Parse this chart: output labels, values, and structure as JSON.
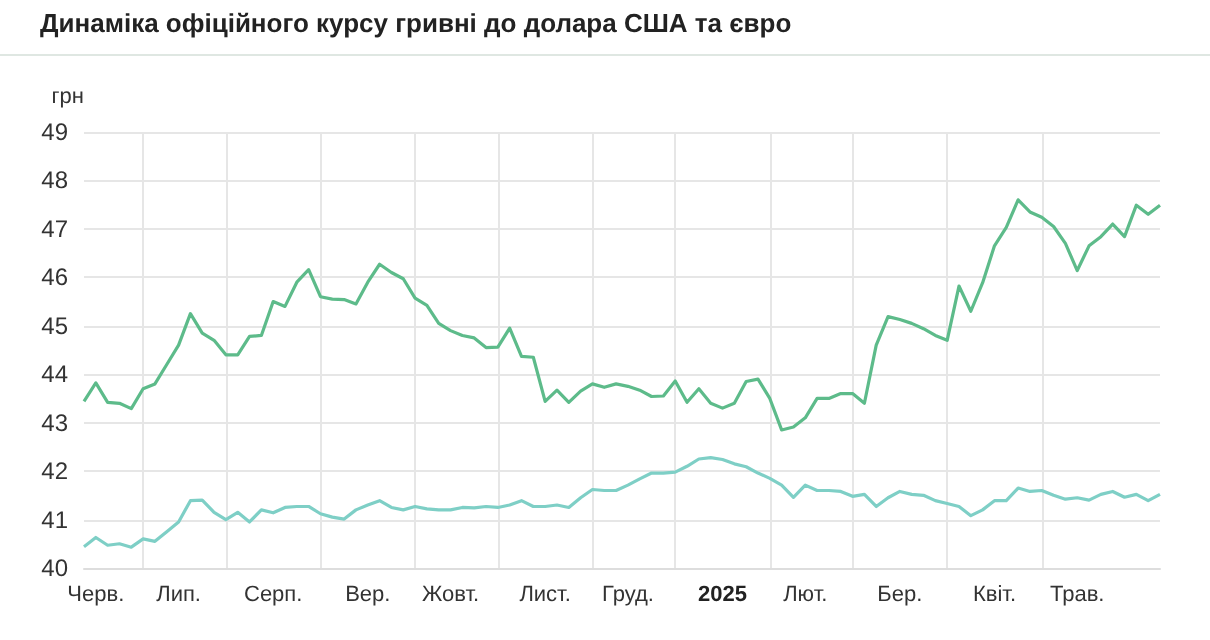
{
  "chart_data": {
    "type": "line",
    "title": "Динаміка офіційного курсу гривні до долара США та євро",
    "ylabel": "грн",
    "categories": [
      null,
      "Черв.",
      null,
      null,
      null,
      null,
      null,
      null,
      "Лип.",
      null,
      null,
      null,
      null,
      null,
      null,
      null,
      "Серп.",
      null,
      null,
      null,
      null,
      null,
      null,
      null,
      "Вер.",
      null,
      null,
      null,
      null,
      null,
      null,
      "Жовт.",
      null,
      null,
      null,
      null,
      null,
      null,
      null,
      "Лист.",
      null,
      null,
      null,
      null,
      null,
      null,
      "Груд.",
      null,
      null,
      null,
      null,
      null,
      null,
      null,
      "2025",
      null,
      null,
      null,
      null,
      null,
      null,
      "Лют.",
      null,
      null,
      null,
      null,
      null,
      null,
      null,
      "Бер.",
      null,
      null,
      null,
      null,
      null,
      null,
      null,
      "Квіт.",
      null,
      null,
      null,
      null,
      null,
      null,
      "Трав.",
      null,
      null,
      null,
      null,
      null,
      null,
      null
    ],
    "ylim": [
      40,
      49
    ],
    "yticks": [
      40,
      41,
      42,
      43,
      44,
      45,
      46,
      47,
      48,
      49
    ],
    "grid": true,
    "marker": "none",
    "line_style": "solid",
    "series": [
      {
        "color": "#5dbb8a",
        "values": [
          43.44,
          43.82,
          43.42,
          43.4,
          43.29,
          43.7,
          43.8,
          44.2,
          44.6,
          45.25,
          44.85,
          44.7,
          44.4,
          44.4,
          44.78,
          44.8,
          45.5,
          45.4,
          45.9,
          46.16,
          45.6,
          45.55,
          45.54,
          45.45,
          45.9,
          46.27,
          46.1,
          45.97,
          45.57,
          45.42,
          45.05,
          44.9,
          44.8,
          44.75,
          44.55,
          44.56,
          44.95,
          44.37,
          44.35,
          43.44,
          43.67,
          43.42,
          43.65,
          43.8,
          43.73,
          43.8,
          43.75,
          43.67,
          43.54,
          43.55,
          43.86,
          43.42,
          43.7,
          43.4,
          43.3,
          43.4,
          43.85,
          43.9,
          43.5,
          42.85,
          42.91,
          43.1,
          43.5,
          43.5,
          43.6,
          43.6,
          43.4,
          44.6,
          45.19,
          45.13,
          45.05,
          44.94,
          44.8,
          44.7,
          45.82,
          45.3,
          45.89,
          46.65,
          47.03,
          47.6,
          47.35,
          47.24,
          47.05,
          46.7,
          46.14,
          46.65,
          46.84,
          47.1,
          46.84,
          47.49,
          47.3,
          47.49
        ]
      },
      {
        "color": "#7ecfc6",
        "values": [
          40.44,
          40.63,
          40.47,
          40.5,
          40.43,
          40.6,
          40.55,
          40.75,
          40.95,
          41.39,
          41.4,
          41.15,
          41.0,
          41.15,
          40.95,
          41.2,
          41.14,
          41.25,
          41.27,
          41.27,
          41.12,
          41.05,
          41.01,
          41.2,
          41.3,
          41.39,
          41.25,
          41.2,
          41.27,
          41.22,
          41.2,
          41.2,
          41.25,
          41.24,
          41.27,
          41.25,
          41.3,
          41.39,
          41.27,
          41.27,
          41.3,
          41.25,
          41.45,
          41.62,
          41.6,
          41.6,
          41.71,
          41.84,
          41.96,
          41.96,
          41.98,
          42.1,
          42.25,
          42.28,
          42.24,
          42.15,
          42.09,
          41.96,
          41.85,
          41.71,
          41.46,
          41.71,
          41.6,
          41.6,
          41.58,
          41.48,
          41.52,
          41.27,
          41.45,
          41.58,
          41.52,
          41.5,
          41.39,
          41.33,
          41.27,
          41.08,
          41.2,
          41.39,
          41.39,
          41.65,
          41.58,
          41.6,
          41.5,
          41.42,
          41.45,
          41.4,
          41.52,
          41.58,
          41.46,
          41.52,
          41.39,
          41.52
        ]
      }
    ]
  }
}
